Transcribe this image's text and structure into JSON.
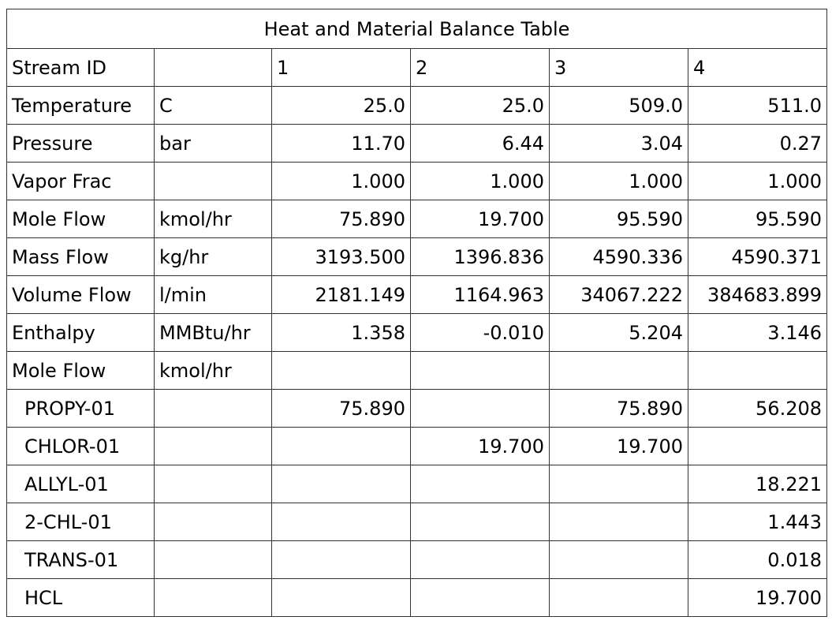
{
  "title": "Heat and Material Balance Table",
  "header": {
    "label": "Stream ID",
    "unit": "",
    "streams": [
      "1",
      "2",
      "3",
      "4"
    ]
  },
  "rows": [
    {
      "label": "Temperature",
      "unit": "C",
      "values": [
        "25.0",
        "25.0",
        "509.0",
        "511.0"
      ]
    },
    {
      "label": "Pressure",
      "unit": "bar",
      "values": [
        "11.70",
        "6.44",
        "3.04",
        "0.27"
      ]
    },
    {
      "label": "Vapor Frac",
      "unit": "",
      "values": [
        "1.000",
        "1.000",
        "1.000",
        "1.000"
      ]
    },
    {
      "label": "Mole Flow",
      "unit": "kmol/hr",
      "values": [
        "75.890",
        "19.700",
        "95.590",
        "95.590"
      ]
    },
    {
      "label": "Mass Flow",
      "unit": "kg/hr",
      "values": [
        "3193.500",
        "1396.836",
        "4590.336",
        "4590.371"
      ]
    },
    {
      "label": "Volume Flow",
      "unit": "l/min",
      "values": [
        "2181.149",
        "1164.963",
        "34067.222",
        "384683.899"
      ]
    },
    {
      "label": "Enthalpy",
      "unit": "MMBtu/hr",
      "values": [
        "1.358",
        "-0.010",
        "5.204",
        "3.146"
      ]
    },
    {
      "label": "Mole Flow",
      "unit": "kmol/hr",
      "values": [
        "",
        "",
        "",
        ""
      ]
    },
    {
      "label": "PROPY-01",
      "unit": "",
      "values": [
        "75.890",
        "",
        "75.890",
        "56.208"
      ]
    },
    {
      "label": "CHLOR-01",
      "unit": "",
      "values": [
        "",
        "19.700",
        "19.700",
        ""
      ]
    },
    {
      "label": "ALLYL-01",
      "unit": "",
      "values": [
        "",
        "",
        "",
        "18.221"
      ]
    },
    {
      "label": "2-CHL-01",
      "unit": "",
      "values": [
        "",
        "",
        "",
        "1.443"
      ]
    },
    {
      "label": "TRANS-01",
      "unit": "",
      "values": [
        "",
        "",
        "",
        "0.018"
      ]
    },
    {
      "label": "HCL",
      "unit": "",
      "values": [
        "",
        "",
        "",
        "19.700"
      ]
    }
  ]
}
